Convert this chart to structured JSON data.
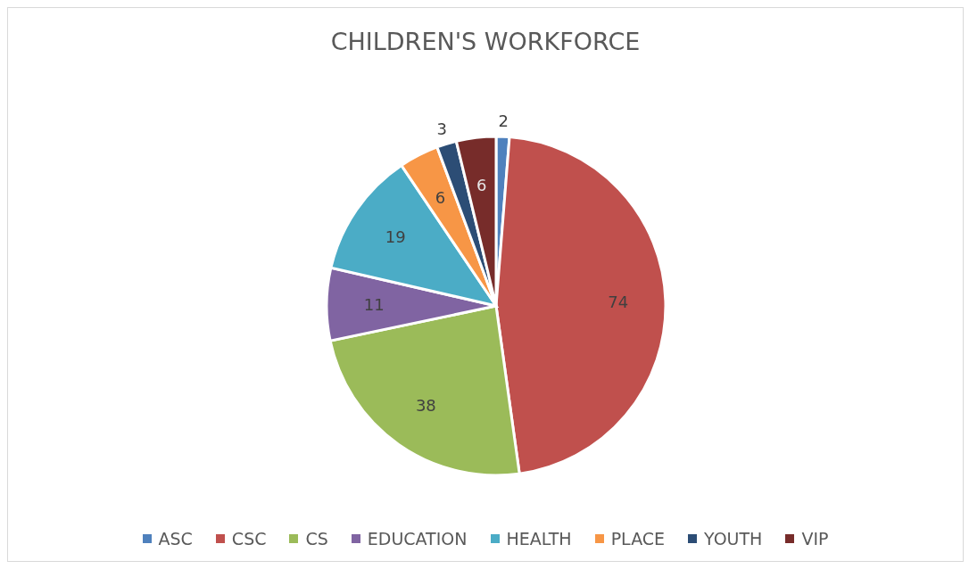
{
  "chart_data": {
    "type": "pie",
    "title": "CHILDREN'S WORKFORCE",
    "categories": [
      "ASC",
      "CSC",
      "CS",
      "EDUCATION",
      "HEALTH",
      "PLACE",
      "YOUTH",
      "VIP"
    ],
    "values": [
      2,
      74,
      38,
      11,
      19,
      6,
      3,
      6
    ],
    "colors": [
      "#4f81bd",
      "#c0504d",
      "#9bbb59",
      "#8064a2",
      "#4bacc6",
      "#f79646",
      "#2c4d75",
      "#772c2a"
    ],
    "data_labels": true,
    "legend": "bottom"
  }
}
